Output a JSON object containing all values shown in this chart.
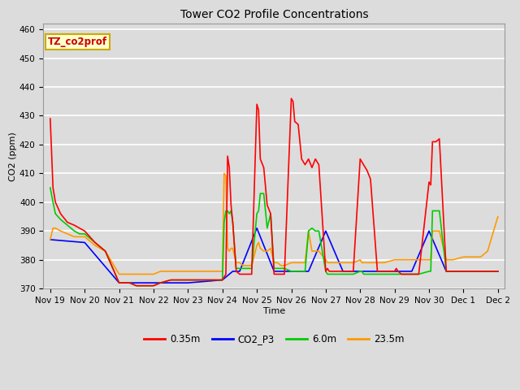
{
  "title": "Tower CO2 Profile Concentrations",
  "xlabel": "Time",
  "ylabel": "CO2 (ppm)",
  "ylim": [
    370,
    462
  ],
  "yticks": [
    370,
    380,
    390,
    400,
    410,
    420,
    430,
    440,
    450,
    460
  ],
  "bg_color": "#dcdcdc",
  "annotation_text": "TZ_co2prof",
  "annotation_bg": "#ffffcc",
  "annotation_border": "#ccaa00",
  "series": {
    "0.35m": {
      "color": "#ff0000",
      "x": [
        0,
        0.08,
        0.15,
        0.3,
        0.5,
        0.7,
        0.85,
        1.0,
        1.3,
        1.6,
        2.0,
        2.3,
        2.5,
        2.7,
        3.0,
        3.2,
        3.5,
        3.7,
        4.0,
        4.2,
        4.5,
        4.7,
        5.0,
        5.05,
        5.1,
        5.15,
        5.2,
        5.25,
        5.3,
        5.4,
        5.5,
        5.6,
        5.7,
        5.8,
        5.85,
        6.0,
        6.05,
        6.1,
        6.2,
        6.3,
        6.4,
        6.5,
        6.6,
        6.7,
        6.8,
        7.0,
        7.05,
        7.1,
        7.2,
        7.3,
        7.4,
        7.5,
        7.6,
        7.7,
        7.8,
        8.0,
        8.05,
        8.1,
        8.2,
        8.3,
        8.4,
        8.5,
        8.6,
        8.7,
        8.8,
        9.0,
        9.05,
        9.1,
        9.2,
        9.3,
        9.5,
        9.7,
        10.0,
        10.05,
        10.1,
        10.2,
        10.3,
        10.5,
        10.7,
        11.0,
        11.05,
        11.1,
        11.2,
        11.3,
        11.5,
        11.7,
        12.0,
        12.3,
        12.5,
        12.7,
        13.0
      ],
      "y": [
        429,
        405,
        400,
        396,
        393,
        392,
        391,
        390,
        386,
        383,
        372,
        372,
        371,
        371,
        371,
        372,
        373,
        373,
        373,
        373,
        373,
        373,
        373,
        374,
        375,
        416,
        412,
        399,
        393,
        376,
        375,
        375,
        375,
        375,
        375,
        434,
        432,
        415,
        412,
        399,
        396,
        375,
        375,
        375,
        375,
        436,
        435,
        428,
        427,
        415,
        413,
        415,
        412,
        415,
        413,
        376,
        377,
        376,
        376,
        376,
        376,
        376,
        376,
        376,
        376,
        415,
        414,
        413,
        411,
        408,
        376,
        376,
        376,
        377,
        376,
        375,
        375,
        375,
        375,
        407,
        406,
        421,
        421,
        422,
        376,
        376,
        376,
        376,
        376,
        376,
        376
      ]
    },
    "CO2_P3": {
      "color": "#0000ff",
      "x": [
        0,
        1.0,
        2.0,
        3.0,
        4.0,
        5.0,
        5.3,
        5.5,
        6.0,
        6.5,
        7.0,
        7.5,
        8.0,
        8.5,
        9.0,
        9.5,
        10.0,
        10.5,
        11.0,
        11.5,
        12.0,
        12.5,
        13.0
      ],
      "y": [
        387,
        386,
        372,
        372,
        372,
        373,
        376,
        376,
        391,
        376,
        376,
        376,
        390,
        376,
        376,
        376,
        376,
        376,
        390,
        376,
        376,
        376,
        376
      ]
    },
    "6.0m": {
      "color": "#00cc00",
      "x": [
        0,
        0.08,
        0.15,
        0.3,
        0.5,
        0.7,
        0.85,
        1.0,
        1.3,
        1.6,
        2.0,
        2.3,
        2.5,
        2.7,
        3.0,
        3.2,
        3.5,
        3.7,
        4.0,
        4.2,
        4.5,
        4.7,
        5.0,
        5.05,
        5.1,
        5.15,
        5.2,
        5.25,
        5.3,
        5.4,
        5.5,
        5.6,
        5.7,
        5.8,
        5.85,
        6.0,
        6.05,
        6.1,
        6.2,
        6.3,
        6.4,
        6.5,
        6.6,
        6.7,
        6.8,
        7.0,
        7.05,
        7.1,
        7.2,
        7.3,
        7.4,
        7.5,
        7.6,
        7.7,
        7.8,
        8.0,
        8.05,
        8.1,
        8.2,
        8.3,
        8.4,
        8.5,
        8.6,
        8.7,
        8.8,
        9.0,
        9.05,
        9.1,
        9.2,
        9.3,
        9.5,
        9.7,
        10.0,
        10.05,
        10.1,
        10.2,
        10.3,
        10.5,
        10.7,
        11.0,
        11.05,
        11.1,
        11.2,
        11.3,
        11.5,
        11.7,
        12.0,
        12.3,
        12.5,
        12.7,
        13.0
      ],
      "y": [
        405,
        400,
        396,
        394,
        392,
        390,
        389,
        389,
        386,
        383,
        372,
        372,
        371,
        371,
        371,
        372,
        373,
        373,
        373,
        373,
        373,
        373,
        373,
        393,
        397,
        397,
        396,
        397,
        393,
        377,
        377,
        377,
        377,
        377,
        377,
        396,
        397,
        403,
        403,
        391,
        396,
        377,
        377,
        377,
        377,
        376,
        376,
        376,
        376,
        376,
        376,
        390,
        391,
        390,
        390,
        376,
        375,
        375,
        375,
        375,
        375,
        375,
        375,
        375,
        375,
        376,
        376,
        375,
        375,
        375,
        375,
        375,
        375,
        375,
        375,
        375,
        375,
        375,
        375,
        376,
        376,
        397,
        397,
        397,
        376,
        376,
        376,
        376,
        376,
        376,
        376
      ]
    },
    "23.5m": {
      "color": "#ff9900",
      "x": [
        0,
        0.08,
        0.15,
        0.3,
        0.5,
        0.7,
        0.85,
        1.0,
        1.3,
        1.6,
        2.0,
        2.3,
        2.5,
        2.7,
        3.0,
        3.2,
        3.5,
        3.7,
        4.0,
        4.2,
        4.5,
        4.7,
        5.0,
        5.05,
        5.1,
        5.15,
        5.2,
        5.25,
        5.3,
        5.4,
        5.5,
        5.6,
        5.7,
        5.8,
        5.85,
        6.0,
        6.05,
        6.1,
        6.2,
        6.3,
        6.4,
        6.5,
        6.6,
        6.7,
        6.8,
        7.0,
        7.05,
        7.1,
        7.2,
        7.3,
        7.4,
        7.5,
        7.6,
        7.7,
        7.8,
        8.0,
        8.05,
        8.1,
        8.2,
        8.3,
        8.4,
        8.5,
        8.6,
        8.7,
        8.8,
        9.0,
        9.05,
        9.1,
        9.2,
        9.3,
        9.5,
        9.7,
        10.0,
        10.05,
        10.1,
        10.2,
        10.3,
        10.5,
        10.7,
        11.0,
        11.05,
        11.1,
        11.2,
        11.3,
        11.5,
        11.7,
        12.0,
        12.3,
        12.5,
        12.7,
        13.0
      ],
      "y": [
        387,
        391,
        391,
        390,
        389,
        388,
        388,
        388,
        385,
        383,
        375,
        375,
        375,
        375,
        375,
        376,
        376,
        376,
        376,
        376,
        376,
        376,
        376,
        410,
        409,
        384,
        383,
        384,
        384,
        379,
        379,
        378,
        378,
        378,
        378,
        385,
        386,
        384,
        383,
        383,
        384,
        379,
        379,
        378,
        378,
        379,
        379,
        379,
        379,
        379,
        379,
        390,
        383,
        383,
        383,
        380,
        379,
        379,
        379,
        379,
        379,
        379,
        379,
        379,
        379,
        380,
        379,
        379,
        379,
        379,
        379,
        379,
        380,
        380,
        380,
        380,
        380,
        380,
        380,
        380,
        380,
        390,
        390,
        390,
        380,
        380,
        381,
        381,
        381,
        383,
        395
      ]
    }
  },
  "xtick_positions": [
    0,
    1,
    2,
    3,
    4,
    5,
    6,
    7,
    8,
    9,
    10,
    11,
    12,
    13
  ],
  "xtick_labels": [
    "Nov 19",
    "Nov 20",
    "Nov 21",
    "Nov 22",
    "Nov 23",
    "Nov 24",
    "Nov 25",
    "Nov 26",
    "Nov 27",
    "Nov 28",
    "Nov 29",
    "Nov 30",
    "Dec 1",
    "Dec 2"
  ],
  "legend_labels": [
    "0.35m",
    "CO2_P3",
    "6.0m",
    "23.5m"
  ],
  "legend_colors": [
    "#ff0000",
    "#0000ff",
    "#00cc00",
    "#ff9900"
  ]
}
